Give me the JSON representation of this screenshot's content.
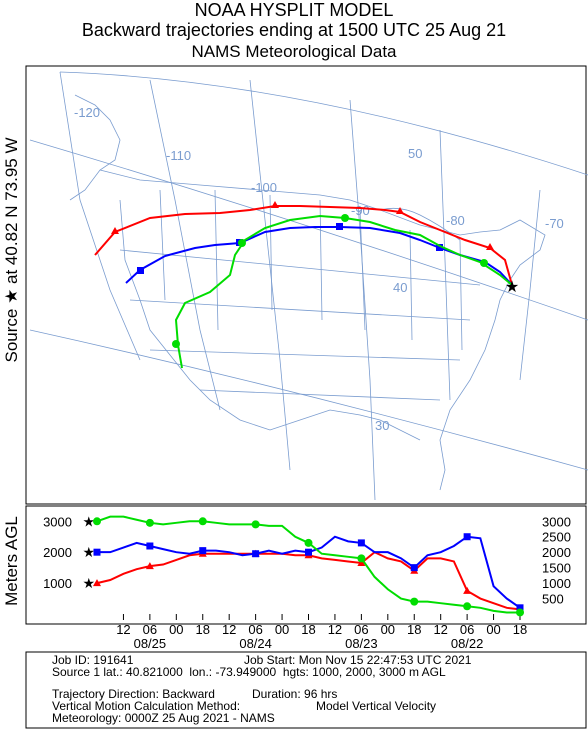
{
  "header": {
    "line1": "NOAA HYSPLIT MODEL",
    "line2": "Backward trajectories ending at 1500 UTC 25 Aug 21",
    "line3": "NAMS Meteorological Data"
  },
  "side_label": "Source ★ at   40.82 N   73.95 W",
  "y_axis_label": "Meters AGL",
  "map": {
    "grid_labels": [
      "-120",
      "-110",
      "-100",
      "-90",
      "-80",
      "-70",
      "50",
      "40",
      "30"
    ]
  },
  "chart_data": {
    "type": "line",
    "title": "Backward trajectories ending at 1500 UTC 25 Aug 21",
    "xlabel": "",
    "ylabel": "Meters AGL",
    "x_tick_labels": [
      "12",
      "06",
      "00",
      "18",
      "12",
      "06",
      "00",
      "18",
      "12",
      "06",
      "00",
      "18",
      "12",
      "06",
      "00",
      "18"
    ],
    "date_labels": [
      "08/25",
      "08/24",
      "08/23",
      "08/22"
    ],
    "left_ticks": [
      "3000",
      "2000",
      "1000"
    ],
    "right_ticks": [
      "3000",
      "2500",
      "2000",
      "1500",
      "1000",
      "500"
    ],
    "ylim": [
      0,
      3300
    ],
    "x_hours_before_end": [
      0,
      96
    ],
    "grid": false,
    "colors": {
      "red": "#ff0000",
      "blue": "#0000ff",
      "green": "#00dd00"
    },
    "series": [
      {
        "color": "red",
        "hours": [
          0,
          3,
          6,
          9,
          12,
          15,
          18,
          21,
          24,
          27,
          30,
          33,
          36,
          39,
          42,
          45,
          48,
          51,
          54,
          57,
          60,
          63,
          66,
          69,
          72,
          75,
          78,
          81,
          84,
          87,
          90,
          93,
          96
        ],
        "values": [
          1000,
          1100,
          1300,
          1450,
          1550,
          1600,
          1750,
          1900,
          1950,
          1950,
          1950,
          1950,
          1950,
          1950,
          1950,
          1900,
          1900,
          1800,
          1750,
          1700,
          1650,
          2000,
          1800,
          1700,
          1400,
          1800,
          1800,
          1700,
          750,
          500,
          350,
          200,
          150
        ]
      },
      {
        "color": "blue",
        "hours": [
          0,
          3,
          6,
          9,
          12,
          15,
          18,
          21,
          24,
          27,
          30,
          33,
          36,
          39,
          42,
          45,
          48,
          51,
          54,
          57,
          60,
          63,
          66,
          69,
          72,
          75,
          78,
          81,
          84,
          87,
          90,
          93,
          96
        ],
        "values": [
          2000,
          2000,
          2150,
          2300,
          2200,
          2100,
          2000,
          1950,
          2050,
          2050,
          2000,
          1900,
          1950,
          2050,
          1950,
          2050,
          2000,
          2150,
          2500,
          2350,
          2300,
          2000,
          2000,
          1800,
          1500,
          1900,
          2000,
          2200,
          2500,
          2450,
          900,
          500,
          200
        ]
      },
      {
        "color": "green",
        "hours": [
          0,
          3,
          6,
          9,
          12,
          15,
          18,
          21,
          24,
          27,
          30,
          33,
          36,
          39,
          42,
          45,
          48,
          51,
          54,
          57,
          60,
          63,
          66,
          69,
          72,
          75,
          78,
          81,
          84,
          87,
          90,
          93,
          96
        ],
        "values": [
          3000,
          3150,
          3150,
          3050,
          2950,
          2900,
          2950,
          3000,
          3000,
          2950,
          2900,
          2900,
          2900,
          2850,
          2850,
          2500,
          2300,
          1950,
          1900,
          1850,
          1800,
          1200,
          800,
          500,
          400,
          400,
          350,
          300,
          250,
          200,
          100,
          50,
          50
        ]
      }
    ]
  },
  "footer": {
    "job_id": "Job ID: 191641",
    "job_start": "Job Start: Mon Nov 15 22:47:53 UTC 2021",
    "source": "Source 1 lat.: 40.821000  lon.: -73.949000  hgts: 1000, 2000, 3000 m AGL",
    "direction": "Trajectory Direction: Backward",
    "duration": "Duration: 96 hrs",
    "vertical_label": "Vertical Motion Calculation Method:",
    "vertical_value": "Model Vertical Velocity",
    "meteorology": "Meteorology: 0000Z 25 Aug 2021 - NAMS"
  }
}
